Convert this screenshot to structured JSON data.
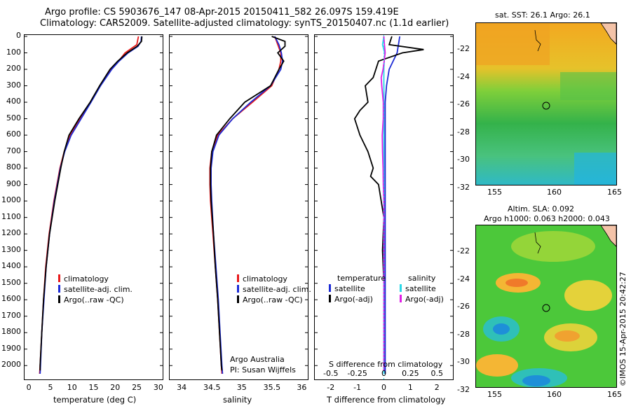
{
  "header": {
    "line1": "Argo profile: CS 5903676_147 08-Apr-2015 20150411_582 26.097S 159.419E",
    "line2": "Climatology: CARS2009. Satellite-adjusted climatology: synTS_20150407.nc (1.1d earlier)"
  },
  "colors": {
    "climatology": "#e8191b",
    "satellite": "#1c2bd6",
    "argo": "#000000",
    "sal_satellite": "#2ad8e8",
    "sal_argo": "#e01ee6"
  },
  "depth_ticks": [
    "0",
    "100",
    "200",
    "300",
    "400",
    "500",
    "600",
    "700",
    "800",
    "900",
    "1000",
    "1100",
    "1200",
    "1300",
    "1400",
    "1500",
    "1600",
    "1700",
    "1800",
    "1900",
    "2000"
  ],
  "temp_panel": {
    "xlabel": "temperature (deg C)",
    "xticks": [
      "0",
      "5",
      "10",
      "15",
      "20",
      "25",
      "30"
    ],
    "legend": [
      "climatology",
      "satellite-adj. clim.",
      "Argo(..raw -QC)"
    ]
  },
  "sal_panel": {
    "xlabel": "salinity",
    "xticks": [
      "34",
      "34.5",
      "35",
      "35.5",
      "36"
    ],
    "legend": [
      "climatology",
      "satellite-adj. clim.",
      "Argo(..raw -QC)"
    ],
    "note1": "Argo Australia",
    "note2": "PI: Susan Wijffels"
  },
  "diff_panel": {
    "xlabel_bottom": "T difference from climatology",
    "xlabel_top": "S difference from climatology",
    "xticks_bottom": [
      "-2",
      "-1",
      "0",
      "1",
      "2"
    ],
    "xticks_top": [
      "-0.5",
      "-0.25",
      "0",
      "0.25",
      "0.5"
    ],
    "legend_t_title": "temperature",
    "legend_t": [
      "satellite",
      "Argo(-adj)"
    ],
    "legend_s_title": "salinity",
    "legend_s": [
      "satellite",
      "Argo(-adj)"
    ]
  },
  "map_top": {
    "title": "sat. SST: 26.1 Argo: 26.1",
    "yticks": [
      "-22",
      "-24",
      "-26",
      "-28",
      "-30",
      "-32"
    ],
    "xticks": [
      "155",
      "160",
      "165"
    ]
  },
  "map_bottom": {
    "title1": "Altim. SLA: 0.092",
    "title2": "Argo h1000: 0.063 h2000: 0.043",
    "yticks": [
      "-22",
      "-24",
      "-26",
      "-28",
      "-30",
      "-32"
    ],
    "xticks": [
      "155",
      "160",
      "165"
    ]
  },
  "credit": "©IMOS 15-Apr-2015 20:42:27",
  "chart_data": [
    {
      "type": "line",
      "title": "",
      "xlabel": "temperature (deg C)",
      "ylabel": "",
      "xlim": [
        -1,
        31
      ],
      "ylim": [
        2050,
        0
      ],
      "series": [
        {
          "name": "climatology",
          "depth": [
            0,
            50,
            100,
            150,
            200,
            300,
            400,
            500,
            600,
            700,
            800,
            900,
            1000,
            1200,
            1400,
            1600,
            1800,
            2000,
            2050
          ],
          "values": [
            25.4,
            25.0,
            22.3,
            20.8,
            18.9,
            16.5,
            14.3,
            11.9,
            9.6,
            8.2,
            7.2,
            6.5,
            5.8,
            4.7,
            3.9,
            3.4,
            3.0,
            2.6,
            2.5
          ]
        },
        {
          "name": "satellite-adj. clim.",
          "depth": [
            0,
            30,
            60,
            100,
            150,
            200,
            300,
            400,
            500,
            600,
            700,
            800,
            900,
            1000,
            1200,
            1400,
            1600,
            1800,
            2000,
            2050
          ],
          "values": [
            26.1,
            26.0,
            25.3,
            23.0,
            20.9,
            19.2,
            16.6,
            14.4,
            12.1,
            9.8,
            8.3,
            7.3,
            6.6,
            5.9,
            4.8,
            4.0,
            3.5,
            3.0,
            2.7,
            2.6
          ]
        },
        {
          "name": "Argo(..raw -QC)",
          "depth": [
            0,
            30,
            60,
            100,
            150,
            200,
            300,
            400,
            500,
            600,
            700,
            800,
            900,
            1000,
            1200,
            1400,
            1600,
            1800,
            2000,
            2030
          ],
          "values": [
            26.2,
            26.1,
            25.1,
            22.8,
            20.6,
            18.8,
            16.4,
            14.2,
            11.6,
            9.3,
            8.2,
            7.4,
            6.7,
            6.0,
            4.8,
            4.0,
            3.4,
            3.0,
            2.6,
            2.6
          ]
        }
      ]
    },
    {
      "type": "line",
      "title": "",
      "xlabel": "salinity",
      "ylabel": "",
      "xlim": [
        33.8,
        36.1
      ],
      "ylim": [
        2050,
        0
      ],
      "series": [
        {
          "name": "climatology",
          "depth": [
            0,
            50,
            100,
            150,
            200,
            300,
            400,
            500,
            600,
            700,
            800,
            900,
            1000,
            1200,
            1400,
            1600,
            1800,
            2000,
            2050
          ],
          "values": [
            35.55,
            35.6,
            35.65,
            35.65,
            35.62,
            35.5,
            35.18,
            34.85,
            34.6,
            34.5,
            34.47,
            34.47,
            34.48,
            34.52,
            34.56,
            34.6,
            34.63,
            34.66,
            34.67
          ]
        },
        {
          "name": "satellite-adj. clim.",
          "depth": [
            0,
            50,
            100,
            150,
            200,
            300,
            400,
            500,
            600,
            700,
            800,
            900,
            1000,
            1200,
            1400,
            1600,
            1800,
            2000,
            2050
          ],
          "values": [
            35.55,
            35.62,
            35.66,
            35.68,
            35.65,
            35.48,
            35.15,
            34.85,
            34.62,
            34.52,
            34.49,
            34.49,
            34.5,
            34.53,
            34.57,
            34.61,
            34.64,
            34.67,
            34.68
          ]
        },
        {
          "name": "Argo(..raw -QC)",
          "depth": [
            0,
            30,
            60,
            100,
            150,
            200,
            300,
            400,
            500,
            600,
            700,
            800,
            900,
            1000,
            1200,
            1400,
            1600,
            1800,
            2000,
            2030
          ],
          "values": [
            35.5,
            35.72,
            35.72,
            35.6,
            35.7,
            35.62,
            35.48,
            35.05,
            34.8,
            34.58,
            34.5,
            34.48,
            34.48,
            34.49,
            34.53,
            34.56,
            34.6,
            34.63,
            34.66,
            34.67
          ]
        }
      ]
    },
    {
      "type": "line",
      "title": "",
      "xlabel": "T difference from climatology",
      "ylabel": "",
      "xlim": [
        -2.6,
        2.6
      ],
      "ylim": [
        2050,
        0
      ],
      "series": [
        {
          "name": "temperature satellite",
          "depth": [
            0,
            100,
            200,
            300,
            400,
            500,
            700,
            1000,
            1500,
            2000,
            2050
          ],
          "values": [
            0.6,
            0.5,
            0.2,
            0.1,
            0.05,
            0.05,
            0.05,
            0.05,
            0.05,
            0.05,
            0.05
          ]
        },
        {
          "name": "temperature Argo(-adj)",
          "depth": [
            0,
            50,
            80,
            100,
            150,
            250,
            300,
            400,
            450,
            500,
            600,
            700,
            800,
            850,
            900,
            1000,
            1100,
            1300,
            1500,
            1700,
            1900,
            2000,
            2030
          ],
          "values": [
            0.3,
            0.2,
            1.5,
            0.7,
            -0.2,
            -0.4,
            -0.7,
            -0.6,
            -0.9,
            -1.1,
            -0.9,
            -0.6,
            -0.4,
            -0.5,
            -0.2,
            -0.1,
            0.0,
            -0.05,
            0.0,
            0.0,
            0.0,
            0.0,
            0.0
          ]
        },
        {
          "name": "salinity satellite",
          "depth": [
            0,
            50,
            100,
            200,
            300,
            500,
            1000,
            1500,
            2000,
            2050
          ],
          "values": [
            0.0,
            -0.05,
            0.03,
            0.0,
            0.0,
            0.0,
            0.0,
            0.0,
            0.0,
            0.0
          ]
        },
        {
          "name": "salinity Argo(-adj)",
          "depth": [
            0,
            50,
            100,
            200,
            250,
            300,
            400,
            500,
            600,
            700,
            800,
            900,
            1000,
            1200,
            1500,
            1800,
            2000,
            2030
          ],
          "values": [
            0.0,
            0.02,
            0.05,
            -0.03,
            -0.1,
            -0.08,
            -0.02,
            -0.02,
            -0.06,
            -0.05,
            -0.03,
            -0.02,
            0.0,
            0.0,
            0.0,
            0.0,
            0.0,
            0.0
          ]
        }
      ]
    }
  ]
}
